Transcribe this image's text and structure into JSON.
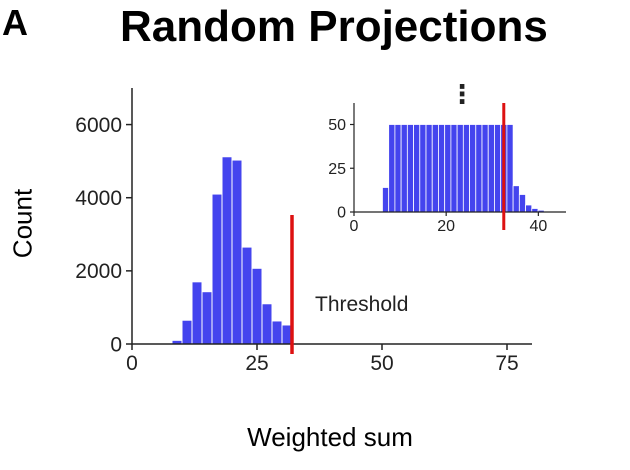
{
  "panel_letter": "A",
  "title": "Random Projections",
  "xlabel": "Weighted sum",
  "ylabel": "Count",
  "threshold_label": "Threshold",
  "ellipsis": "⋮",
  "colors": {
    "bars": "#4444ee",
    "threshold": "#dd1111",
    "axis": "#222222"
  },
  "chart_data": [
    {
      "type": "bar",
      "panel": "main",
      "bin_width": 2,
      "x": [
        7,
        9,
        11,
        13,
        15,
        17,
        19,
        21,
        23,
        25,
        27,
        29,
        31,
        33
      ],
      "values": [
        20,
        100,
        650,
        1700,
        1430,
        4100,
        5120,
        5030,
        2650,
        2070,
        1100,
        630,
        520,
        20
      ],
      "xlim": [
        0,
        80
      ],
      "ylim": [
        0,
        7000
      ],
      "xticks": [
        0,
        25,
        50,
        75
      ],
      "yticks": [
        0,
        2000,
        4000,
        6000
      ],
      "xlabel": "Weighted sum",
      "ylabel": "Count",
      "threshold": 32,
      "threshold_label": "Threshold"
    },
    {
      "type": "bar",
      "panel": "inset",
      "bin_width": 1.35,
      "x": [
        5.5,
        6.85,
        8.2,
        9.55,
        10.9,
        12.25,
        13.6,
        14.95,
        16.3,
        17.65,
        19.0,
        20.35,
        21.7,
        23.05,
        24.4,
        25.75,
        27.1,
        28.45,
        29.8,
        31.15,
        32.5,
        33.85,
        35.2,
        36.55,
        37.9,
        39.25,
        40.6,
        41.95
      ],
      "values": [
        0,
        14,
        50,
        50,
        50,
        50,
        50,
        50,
        50,
        50,
        50,
        50,
        50,
        50,
        50,
        50,
        50,
        50,
        50,
        50,
        50,
        50,
        15,
        10,
        4,
        2,
        1,
        0
      ],
      "xlim": [
        0,
        46
      ],
      "ylim": [
        0,
        52
      ],
      "xticks": [
        0,
        20,
        40
      ],
      "yticks": [
        0,
        25,
        50
      ],
      "threshold": 32.5
    }
  ]
}
